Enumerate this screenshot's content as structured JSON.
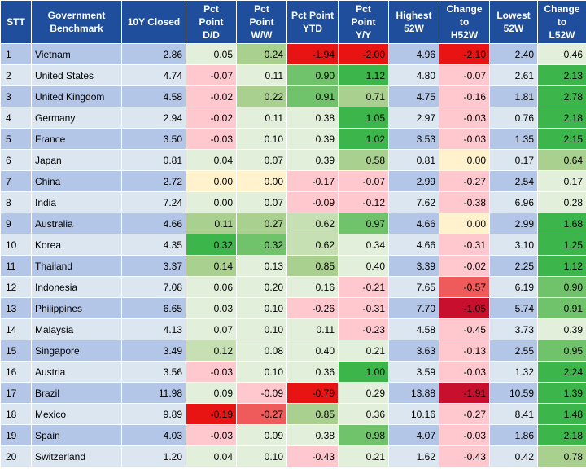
{
  "colors": {
    "header_bg": "#1f4e9c",
    "row_odd": "#b4c6e7",
    "row_even": "#dce6f1",
    "positive_shades": [
      "#e2efda",
      "#c6e0b4",
      "#a9d08e",
      "#70c36b",
      "#3cb54a"
    ],
    "negative_shades": [
      "#ffc7ce",
      "#f29e9e",
      "#ef5a5a",
      "#e81414",
      "#c8102e"
    ],
    "zero": "#fff2cc"
  },
  "headers": {
    "stt": "STT",
    "benchmark_l1": "Government",
    "benchmark_l2": "Benchmark",
    "closed": "10Y Closed",
    "dd_l1": "Pct",
    "dd_l2": "Point",
    "dd_l3": "D/D",
    "ww_l1": "Pct",
    "ww_l2": "Point",
    "ww_l3": "W/W",
    "ytd_l1": "Pct Point",
    "ytd_l2": "YTD",
    "yy_l1": "Pct",
    "yy_l2": "Point",
    "yy_l3": "Y/Y",
    "h52_l1": "Highest",
    "h52_l2": "52W",
    "ch52_l1": "Change",
    "ch52_l2": "to",
    "ch52_l3": "H52W",
    "l52_l1": "Lowest",
    "l52_l2": "52W",
    "cl52_l1": "Change",
    "cl52_l2": "to",
    "cl52_l3": "L52W"
  },
  "rows": [
    {
      "stt": "1",
      "name": "Vietnam",
      "closed": "2.86",
      "dd": "0.05",
      "ww": "0.24",
      "ytd": "-1.94",
      "yy": "-2.00",
      "h52": "4.96",
      "ch52": "-2.10",
      "l52": "2.40",
      "cl52": "0.46",
      "cls": {
        "dd": "c-g0",
        "ww": "c-g2",
        "ytd": "c-r4",
        "yy": "c-r4",
        "ch52": "c-r4",
        "cl52": "c-g0"
      }
    },
    {
      "stt": "2",
      "name": "United States",
      "closed": "4.74",
      "dd": "-0.07",
      "ww": "0.11",
      "ytd": "0.90",
      "yy": "1.12",
      "h52": "4.80",
      "ch52": "-0.07",
      "l52": "2.61",
      "cl52": "2.13",
      "cls": {
        "dd": "c-r1",
        "ww": "c-g0",
        "ytd": "c-g3",
        "yy": "c-g4",
        "ch52": "c-r1",
        "cl52": "c-g4"
      }
    },
    {
      "stt": "3",
      "name": "United Kingdom",
      "closed": "4.58",
      "dd": "-0.02",
      "ww": "0.22",
      "ytd": "0.91",
      "yy": "0.71",
      "h52": "4.75",
      "ch52": "-0.16",
      "l52": "1.81",
      "cl52": "2.78",
      "cls": {
        "dd": "c-r1",
        "ww": "c-g2",
        "ytd": "c-g3",
        "yy": "c-g2",
        "ch52": "c-r1",
        "cl52": "c-g4"
      }
    },
    {
      "stt": "4",
      "name": "Germany",
      "closed": "2.94",
      "dd": "-0.02",
      "ww": "0.11",
      "ytd": "0.38",
      "yy": "1.05",
      "h52": "2.97",
      "ch52": "-0.03",
      "l52": "0.76",
      "cl52": "2.18",
      "cls": {
        "dd": "c-r1",
        "ww": "c-g0",
        "ytd": "c-g0",
        "yy": "c-g4",
        "ch52": "c-r1",
        "cl52": "c-g4"
      }
    },
    {
      "stt": "5",
      "name": "France",
      "closed": "3.50",
      "dd": "-0.03",
      "ww": "0.10",
      "ytd": "0.39",
      "yy": "1.02",
      "h52": "3.53",
      "ch52": "-0.03",
      "l52": "1.35",
      "cl52": "2.15",
      "cls": {
        "dd": "c-r1",
        "ww": "c-g0",
        "ytd": "c-g0",
        "yy": "c-g4",
        "ch52": "c-r1",
        "cl52": "c-g4"
      }
    },
    {
      "stt": "6",
      "name": "Japan",
      "closed": "0.81",
      "dd": "0.04",
      "ww": "0.07",
      "ytd": "0.39",
      "yy": "0.58",
      "h52": "0.81",
      "ch52": "0.00",
      "l52": "0.17",
      "cl52": "0.64",
      "cls": {
        "dd": "c-g0",
        "ww": "c-g0",
        "ytd": "c-g0",
        "yy": "c-g2",
        "ch52": "c-y",
        "cl52": "c-g2"
      }
    },
    {
      "stt": "7",
      "name": "China",
      "closed": "2.72",
      "dd": "0.00",
      "ww": "0.00",
      "ytd": "-0.17",
      "yy": "-0.07",
      "h52": "2.99",
      "ch52": "-0.27",
      "l52": "2.54",
      "cl52": "0.17",
      "cls": {
        "dd": "c-y",
        "ww": "c-y",
        "ytd": "c-r1",
        "yy": "c-r1",
        "ch52": "c-r1",
        "cl52": "c-g0"
      }
    },
    {
      "stt": "8",
      "name": "India",
      "closed": "7.24",
      "dd": "0.00",
      "ww": "0.07",
      "ytd": "-0.09",
      "yy": "-0.12",
      "h52": "7.62",
      "ch52": "-0.38",
      "l52": "6.96",
      "cl52": "0.28",
      "cls": {
        "dd": "c-g0",
        "ww": "c-g0",
        "ytd": "c-r1",
        "yy": "c-r1",
        "ch52": "c-r1",
        "cl52": "c-g0"
      }
    },
    {
      "stt": "9",
      "name": "Australia",
      "closed": "4.66",
      "dd": "0.11",
      "ww": "0.27",
      "ytd": "0.62",
      "yy": "0.97",
      "h52": "4.66",
      "ch52": "0.00",
      "l52": "2.99",
      "cl52": "1.68",
      "cls": {
        "dd": "c-g2",
        "ww": "c-g2",
        "ytd": "c-g1",
        "yy": "c-g3",
        "ch52": "c-y",
        "cl52": "c-g4"
      }
    },
    {
      "stt": "10",
      "name": "Korea",
      "closed": "4.35",
      "dd": "0.32",
      "ww": "0.32",
      "ytd": "0.62",
      "yy": "0.34",
      "h52": "4.66",
      "ch52": "-0.31",
      "l52": "3.10",
      "cl52": "1.25",
      "cls": {
        "dd": "c-g4",
        "ww": "c-g3",
        "ytd": "c-g1",
        "yy": "c-g0",
        "ch52": "c-r1",
        "cl52": "c-g4"
      }
    },
    {
      "stt": "11",
      "name": "Thailand",
      "closed": "3.37",
      "dd": "0.14",
      "ww": "0.13",
      "ytd": "0.85",
      "yy": "0.40",
      "h52": "3.39",
      "ch52": "-0.02",
      "l52": "2.25",
      "cl52": "1.12",
      "cls": {
        "dd": "c-g2",
        "ww": "c-g0",
        "ytd": "c-g2",
        "yy": "c-g0",
        "ch52": "c-r1",
        "cl52": "c-g4"
      }
    },
    {
      "stt": "12",
      "name": "Indonesia",
      "closed": "7.08",
      "dd": "0.06",
      "ww": "0.20",
      "ytd": "0.16",
      "yy": "-0.21",
      "h52": "7.65",
      "ch52": "-0.57",
      "l52": "6.19",
      "cl52": "0.90",
      "cls": {
        "dd": "c-g0",
        "ww": "c-g0",
        "ytd": "c-g0",
        "yy": "c-r1",
        "ch52": "c-r3",
        "cl52": "c-g3"
      }
    },
    {
      "stt": "13",
      "name": "Philippines",
      "closed": "6.65",
      "dd": "0.03",
      "ww": "0.10",
      "ytd": "-0.26",
      "yy": "-0.31",
      "h52": "7.70",
      "ch52": "-1.05",
      "l52": "5.74",
      "cl52": "0.91",
      "cls": {
        "dd": "c-g0",
        "ww": "c-g0",
        "ytd": "c-r1",
        "yy": "c-r1",
        "ch52": "c-r5",
        "cl52": "c-g3"
      }
    },
    {
      "stt": "14",
      "name": "Malaysia",
      "closed": "4.13",
      "dd": "0.07",
      "ww": "0.10",
      "ytd": "0.11",
      "yy": "-0.23",
      "h52": "4.58",
      "ch52": "-0.45",
      "l52": "3.73",
      "cl52": "0.39",
      "cls": {
        "dd": "c-g0",
        "ww": "c-g0",
        "ytd": "c-g0",
        "yy": "c-r1",
        "ch52": "c-r1",
        "cl52": "c-g0"
      }
    },
    {
      "stt": "15",
      "name": "Singapore",
      "closed": "3.49",
      "dd": "0.12",
      "ww": "0.08",
      "ytd": "0.40",
      "yy": "0.21",
      "h52": "3.63",
      "ch52": "-0.13",
      "l52": "2.55",
      "cl52": "0.95",
      "cls": {
        "dd": "c-g1",
        "ww": "c-g0",
        "ytd": "c-g0",
        "yy": "c-g0",
        "ch52": "c-r1",
        "cl52": "c-g3"
      }
    },
    {
      "stt": "16",
      "name": "Austria",
      "closed": "3.56",
      "dd": "-0.03",
      "ww": "0.10",
      "ytd": "0.36",
      "yy": "1.00",
      "h52": "3.59",
      "ch52": "-0.03",
      "l52": "1.32",
      "cl52": "2.24",
      "cls": {
        "dd": "c-r1",
        "ww": "c-g0",
        "ytd": "c-g0",
        "yy": "c-g4",
        "ch52": "c-r1",
        "cl52": "c-g4"
      }
    },
    {
      "stt": "17",
      "name": "Brazil",
      "closed": "11.98",
      "dd": "0.09",
      "ww": "-0.09",
      "ytd": "-0.79",
      "yy": "0.29",
      "h52": "13.88",
      "ch52": "-1.91",
      "l52": "10.59",
      "cl52": "1.39",
      "cls": {
        "dd": "c-g0",
        "ww": "c-r1",
        "ytd": "c-r4",
        "yy": "c-g0",
        "ch52": "c-r5",
        "cl52": "c-g4"
      }
    },
    {
      "stt": "18",
      "name": "Mexico",
      "closed": "9.89",
      "dd": "-0.19",
      "ww": "-0.27",
      "ytd": "0.85",
      "yy": "0.36",
      "h52": "10.16",
      "ch52": "-0.27",
      "l52": "8.41",
      "cl52": "1.48",
      "cls": {
        "dd": "c-r4",
        "ww": "c-r3",
        "ytd": "c-g2",
        "yy": "c-g0",
        "ch52": "c-r1",
        "cl52": "c-g4"
      }
    },
    {
      "stt": "19",
      "name": "Spain",
      "closed": "4.03",
      "dd": "-0.03",
      "ww": "0.09",
      "ytd": "0.38",
      "yy": "0.98",
      "h52": "4.07",
      "ch52": "-0.03",
      "l52": "1.86",
      "cl52": "2.18",
      "cls": {
        "dd": "c-r1",
        "ww": "c-g0",
        "ytd": "c-g0",
        "yy": "c-g3",
        "ch52": "c-r1",
        "cl52": "c-g4"
      }
    },
    {
      "stt": "20",
      "name": "Switzerland",
      "closed": "1.20",
      "dd": "0.04",
      "ww": "0.10",
      "ytd": "-0.43",
      "yy": "0.21",
      "h52": "1.62",
      "ch52": "-0.43",
      "l52": "0.42",
      "cl52": "0.78",
      "cls": {
        "dd": "c-g0",
        "ww": "c-g0",
        "ytd": "c-r1",
        "yy": "c-g0",
        "ch52": "c-r1",
        "cl52": "c-g2"
      }
    }
  ]
}
